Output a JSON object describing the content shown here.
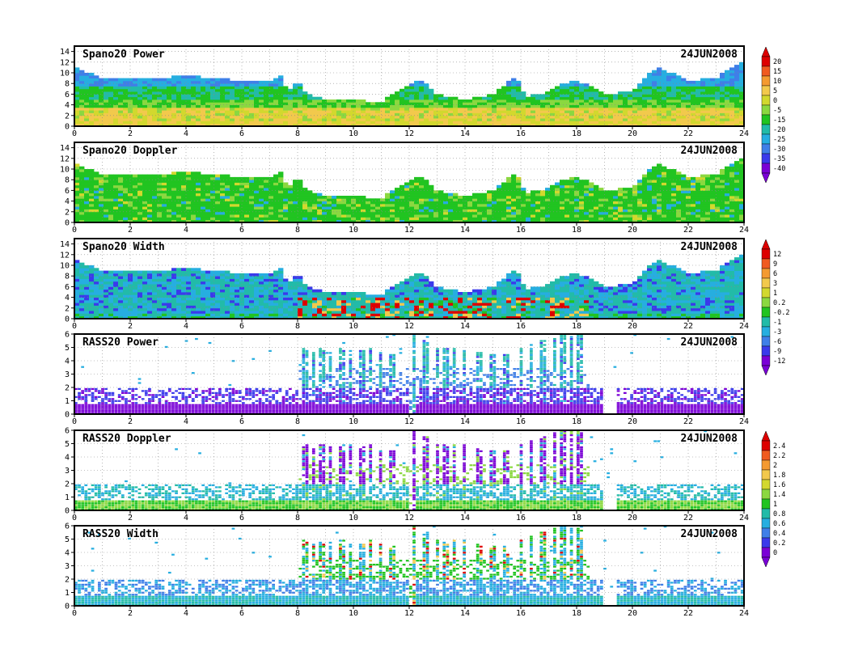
{
  "chart_data": [
    {
      "type": "heatmap",
      "title": "Spano20 Power",
      "date": "24JUN2008",
      "x_ticks": [
        "0",
        "2",
        "4",
        "6",
        "8",
        "10",
        "12",
        "14",
        "16",
        "18",
        "20",
        "22",
        "24"
      ],
      "y_ticks": [
        "0",
        "2",
        "4",
        "6",
        "8",
        "10",
        "12",
        "14"
      ],
      "xlim": [
        0,
        24
      ],
      "ylim": [
        0,
        15
      ],
      "echo_top": [
        [
          0,
          11
        ],
        [
          1,
          9
        ],
        [
          2,
          9
        ],
        [
          3,
          9
        ],
        [
          4,
          9.5
        ],
        [
          5,
          9
        ],
        [
          6,
          8.5
        ],
        [
          7,
          8.5
        ],
        [
          7.5,
          9.5
        ],
        [
          7.6,
          6.5
        ],
        [
          8,
          8.5
        ],
        [
          8.3,
          6
        ],
        [
          9,
          5
        ],
        [
          10,
          5
        ],
        [
          11,
          4.5
        ],
        [
          12,
          8
        ],
        [
          12.5,
          8.5
        ],
        [
          13,
          6
        ],
        [
          14,
          5
        ],
        [
          15,
          6
        ],
        [
          15.8,
          9.5
        ],
        [
          16.2,
          5.5
        ],
        [
          17,
          6.5
        ],
        [
          17.5,
          8
        ],
        [
          18,
          8.5
        ],
        [
          18.5,
          7.5
        ],
        [
          19,
          6
        ],
        [
          20,
          6.5
        ],
        [
          20.5,
          9.5
        ],
        [
          21,
          11
        ],
        [
          22,
          8.5
        ],
        [
          23,
          9
        ],
        [
          23.5,
          11
        ],
        [
          24,
          12
        ]
      ],
      "colorbar": {
        "ticks": [
          "20",
          "15",
          "10",
          "5",
          "0",
          "-5",
          "-15",
          "-20",
          "-25",
          "-30",
          "-35",
          "-40"
        ],
        "colors": [
          "#dd0000",
          "#f05a20",
          "#f49a30",
          "#f2c94c",
          "#d2d82e",
          "#8bd840",
          "#21c421",
          "#22bba8",
          "#26aee0",
          "#3f7fe8",
          "#3a3aeb",
          "#7a00d6"
        ]
      }
    },
    {
      "type": "heatmap",
      "title": "Spano20 Doppler",
      "date": "24JUN2008",
      "x_ticks": [
        "0",
        "2",
        "4",
        "6",
        "8",
        "10",
        "12",
        "14",
        "16",
        "18",
        "20",
        "22",
        "24"
      ],
      "y_ticks": [
        "0",
        "2",
        "4",
        "6",
        "8",
        "10",
        "12",
        "14"
      ],
      "xlim": [
        0,
        24
      ],
      "ylim": [
        0,
        15
      ],
      "echo_top": [
        [
          0,
          11
        ],
        [
          1,
          9
        ],
        [
          2,
          9
        ],
        [
          3,
          9
        ],
        [
          4,
          9.5
        ],
        [
          5,
          9
        ],
        [
          6,
          8.5
        ],
        [
          7,
          8.5
        ],
        [
          7.5,
          9.5
        ],
        [
          7.6,
          6.5
        ],
        [
          8,
          8.5
        ],
        [
          8.3,
          6
        ],
        [
          9,
          5
        ],
        [
          10,
          5
        ],
        [
          11,
          4.5
        ],
        [
          12,
          8
        ],
        [
          12.5,
          8.5
        ],
        [
          13,
          6
        ],
        [
          14,
          5
        ],
        [
          15,
          6
        ],
        [
          15.8,
          9.5
        ],
        [
          16.2,
          5.5
        ],
        [
          17,
          6.5
        ],
        [
          17.5,
          8
        ],
        [
          18,
          8.5
        ],
        [
          18.5,
          7.5
        ],
        [
          19,
          6
        ],
        [
          20,
          6.5
        ],
        [
          20.5,
          9.5
        ],
        [
          21,
          11
        ],
        [
          22,
          8.5
        ],
        [
          23,
          9
        ],
        [
          23.5,
          11
        ],
        [
          24,
          12
        ]
      ]
    },
    {
      "type": "heatmap",
      "title": "Spano20 Width",
      "date": "24JUN2008",
      "x_ticks": [
        "0",
        "2",
        "4",
        "6",
        "8",
        "10",
        "12",
        "14",
        "16",
        "18",
        "20",
        "22",
        "24"
      ],
      "y_ticks": [
        "0",
        "2",
        "4",
        "6",
        "8",
        "10",
        "12",
        "14"
      ],
      "xlim": [
        0,
        24
      ],
      "ylim": [
        0,
        15
      ],
      "echo_top": [
        [
          0,
          11
        ],
        [
          1,
          9
        ],
        [
          2,
          9
        ],
        [
          3,
          9
        ],
        [
          4,
          9.5
        ],
        [
          5,
          9
        ],
        [
          6,
          8.5
        ],
        [
          7,
          8.5
        ],
        [
          7.5,
          9.5
        ],
        [
          7.6,
          6.5
        ],
        [
          8,
          8.5
        ],
        [
          8.3,
          6
        ],
        [
          9,
          5
        ],
        [
          10,
          5
        ],
        [
          11,
          4.5
        ],
        [
          12,
          8
        ],
        [
          12.5,
          8.5
        ],
        [
          13,
          6
        ],
        [
          14,
          5
        ],
        [
          15,
          6
        ],
        [
          15.8,
          9.5
        ],
        [
          16.2,
          5.5
        ],
        [
          17,
          6.5
        ],
        [
          17.5,
          8
        ],
        [
          18,
          8.5
        ],
        [
          18.5,
          7.5
        ],
        [
          19,
          6
        ],
        [
          20,
          6.5
        ],
        [
          20.5,
          9.5
        ],
        [
          21,
          11
        ],
        [
          22,
          8.5
        ],
        [
          23,
          9
        ],
        [
          23.5,
          11
        ],
        [
          24,
          12
        ]
      ],
      "colorbar": {
        "ticks": [
          "12",
          "9",
          "6",
          "3",
          "1",
          "0.2",
          "-0.2",
          "-1",
          "-3",
          "-6",
          "-9",
          "-12"
        ],
        "colors": [
          "#dd0000",
          "#f05a20",
          "#f49a30",
          "#f2c94c",
          "#d2d82e",
          "#8bd840",
          "#21c421",
          "#22bba8",
          "#26aee0",
          "#3f7fe8",
          "#3a3aeb",
          "#7a00d6"
        ]
      }
    },
    {
      "type": "heatmap",
      "title": "RASS20 Power",
      "date": "24JUN2008",
      "x_ticks": [
        "0",
        "2",
        "4",
        "6",
        "8",
        "10",
        "12",
        "14",
        "16",
        "18",
        "20",
        "22",
        "24"
      ],
      "y_ticks": [
        "0",
        "1",
        "2",
        "3",
        "4",
        "5",
        "6"
      ],
      "xlim": [
        0,
        24
      ],
      "ylim": [
        0,
        6
      ]
    },
    {
      "type": "heatmap",
      "title": "RASS20 Doppler",
      "date": "24JUN2008",
      "x_ticks": [
        "0",
        "2",
        "4",
        "6",
        "8",
        "10",
        "12",
        "14",
        "16",
        "18",
        "20",
        "22",
        "24"
      ],
      "y_ticks": [
        "0",
        "1",
        "2",
        "3",
        "4",
        "5",
        "6"
      ],
      "xlim": [
        0,
        24
      ],
      "ylim": [
        0,
        6
      ],
      "colorbar": {
        "ticks": [
          "2.4",
          "2.2",
          "2",
          "1.8",
          "1.6",
          "1.4",
          "1",
          "0.8",
          "0.6",
          "0.4",
          "0.2",
          "0"
        ],
        "colors": [
          "#dd0000",
          "#f05a20",
          "#f49a30",
          "#f2c94c",
          "#d2d82e",
          "#8bd840",
          "#21c421",
          "#22bba8",
          "#26aee0",
          "#3f7fe8",
          "#3a3aeb",
          "#7a00d6"
        ]
      }
    },
    {
      "type": "heatmap",
      "title": "RASS20 Width",
      "date": "24JUN2008",
      "x_ticks": [
        "0",
        "2",
        "4",
        "6",
        "8",
        "10",
        "12",
        "14",
        "16",
        "18",
        "20",
        "22",
        "24"
      ],
      "y_ticks": [
        "0",
        "1",
        "2",
        "3",
        "4",
        "5",
        "6"
      ],
      "xlim": [
        0,
        24
      ],
      "ylim": [
        0,
        6
      ]
    }
  ]
}
